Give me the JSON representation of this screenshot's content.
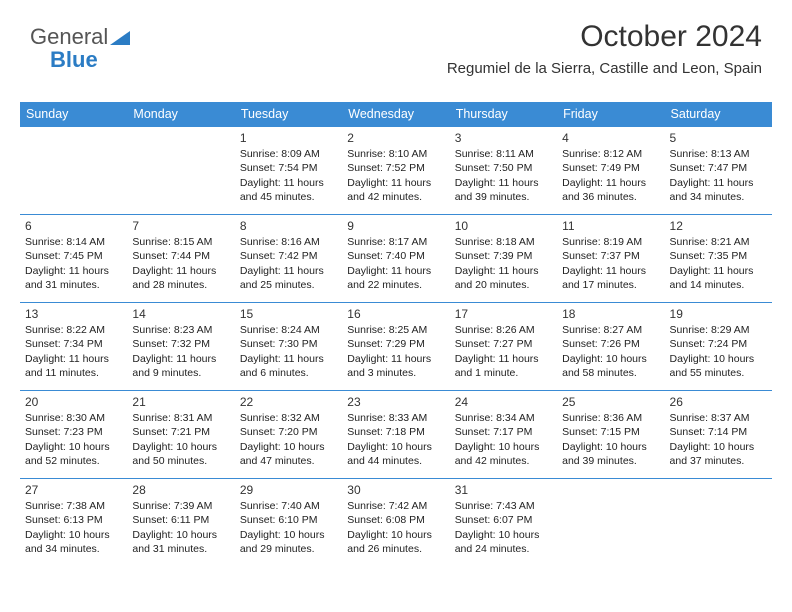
{
  "logo": {
    "line1": "General",
    "line2": "Blue"
  },
  "title": "October 2024",
  "location": "Regumiel de la Sierra, Castille and Leon, Spain",
  "colors": {
    "header_bg": "#3a8bd4",
    "header_fg": "#ffffff",
    "rule": "#3a8bd4",
    "text": "#222222"
  },
  "weekdays": [
    "Sunday",
    "Monday",
    "Tuesday",
    "Wednesday",
    "Thursday",
    "Friday",
    "Saturday"
  ],
  "weeks": [
    [
      null,
      null,
      {
        "n": "1",
        "sr": "Sunrise: 8:09 AM",
        "ss": "Sunset: 7:54 PM",
        "d1": "Daylight: 11 hours",
        "d2": "and 45 minutes."
      },
      {
        "n": "2",
        "sr": "Sunrise: 8:10 AM",
        "ss": "Sunset: 7:52 PM",
        "d1": "Daylight: 11 hours",
        "d2": "and 42 minutes."
      },
      {
        "n": "3",
        "sr": "Sunrise: 8:11 AM",
        "ss": "Sunset: 7:50 PM",
        "d1": "Daylight: 11 hours",
        "d2": "and 39 minutes."
      },
      {
        "n": "4",
        "sr": "Sunrise: 8:12 AM",
        "ss": "Sunset: 7:49 PM",
        "d1": "Daylight: 11 hours",
        "d2": "and 36 minutes."
      },
      {
        "n": "5",
        "sr": "Sunrise: 8:13 AM",
        "ss": "Sunset: 7:47 PM",
        "d1": "Daylight: 11 hours",
        "d2": "and 34 minutes."
      }
    ],
    [
      {
        "n": "6",
        "sr": "Sunrise: 8:14 AM",
        "ss": "Sunset: 7:45 PM",
        "d1": "Daylight: 11 hours",
        "d2": "and 31 minutes."
      },
      {
        "n": "7",
        "sr": "Sunrise: 8:15 AM",
        "ss": "Sunset: 7:44 PM",
        "d1": "Daylight: 11 hours",
        "d2": "and 28 minutes."
      },
      {
        "n": "8",
        "sr": "Sunrise: 8:16 AM",
        "ss": "Sunset: 7:42 PM",
        "d1": "Daylight: 11 hours",
        "d2": "and 25 minutes."
      },
      {
        "n": "9",
        "sr": "Sunrise: 8:17 AM",
        "ss": "Sunset: 7:40 PM",
        "d1": "Daylight: 11 hours",
        "d2": "and 22 minutes."
      },
      {
        "n": "10",
        "sr": "Sunrise: 8:18 AM",
        "ss": "Sunset: 7:39 PM",
        "d1": "Daylight: 11 hours",
        "d2": "and 20 minutes."
      },
      {
        "n": "11",
        "sr": "Sunrise: 8:19 AM",
        "ss": "Sunset: 7:37 PM",
        "d1": "Daylight: 11 hours",
        "d2": "and 17 minutes."
      },
      {
        "n": "12",
        "sr": "Sunrise: 8:21 AM",
        "ss": "Sunset: 7:35 PM",
        "d1": "Daylight: 11 hours",
        "d2": "and 14 minutes."
      }
    ],
    [
      {
        "n": "13",
        "sr": "Sunrise: 8:22 AM",
        "ss": "Sunset: 7:34 PM",
        "d1": "Daylight: 11 hours",
        "d2": "and 11 minutes."
      },
      {
        "n": "14",
        "sr": "Sunrise: 8:23 AM",
        "ss": "Sunset: 7:32 PM",
        "d1": "Daylight: 11 hours",
        "d2": "and 9 minutes."
      },
      {
        "n": "15",
        "sr": "Sunrise: 8:24 AM",
        "ss": "Sunset: 7:30 PM",
        "d1": "Daylight: 11 hours",
        "d2": "and 6 minutes."
      },
      {
        "n": "16",
        "sr": "Sunrise: 8:25 AM",
        "ss": "Sunset: 7:29 PM",
        "d1": "Daylight: 11 hours",
        "d2": "and 3 minutes."
      },
      {
        "n": "17",
        "sr": "Sunrise: 8:26 AM",
        "ss": "Sunset: 7:27 PM",
        "d1": "Daylight: 11 hours",
        "d2": "and 1 minute."
      },
      {
        "n": "18",
        "sr": "Sunrise: 8:27 AM",
        "ss": "Sunset: 7:26 PM",
        "d1": "Daylight: 10 hours",
        "d2": "and 58 minutes."
      },
      {
        "n": "19",
        "sr": "Sunrise: 8:29 AM",
        "ss": "Sunset: 7:24 PM",
        "d1": "Daylight: 10 hours",
        "d2": "and 55 minutes."
      }
    ],
    [
      {
        "n": "20",
        "sr": "Sunrise: 8:30 AM",
        "ss": "Sunset: 7:23 PM",
        "d1": "Daylight: 10 hours",
        "d2": "and 52 minutes."
      },
      {
        "n": "21",
        "sr": "Sunrise: 8:31 AM",
        "ss": "Sunset: 7:21 PM",
        "d1": "Daylight: 10 hours",
        "d2": "and 50 minutes."
      },
      {
        "n": "22",
        "sr": "Sunrise: 8:32 AM",
        "ss": "Sunset: 7:20 PM",
        "d1": "Daylight: 10 hours",
        "d2": "and 47 minutes."
      },
      {
        "n": "23",
        "sr": "Sunrise: 8:33 AM",
        "ss": "Sunset: 7:18 PM",
        "d1": "Daylight: 10 hours",
        "d2": "and 44 minutes."
      },
      {
        "n": "24",
        "sr": "Sunrise: 8:34 AM",
        "ss": "Sunset: 7:17 PM",
        "d1": "Daylight: 10 hours",
        "d2": "and 42 minutes."
      },
      {
        "n": "25",
        "sr": "Sunrise: 8:36 AM",
        "ss": "Sunset: 7:15 PM",
        "d1": "Daylight: 10 hours",
        "d2": "and 39 minutes."
      },
      {
        "n": "26",
        "sr": "Sunrise: 8:37 AM",
        "ss": "Sunset: 7:14 PM",
        "d1": "Daylight: 10 hours",
        "d2": "and 37 minutes."
      }
    ],
    [
      {
        "n": "27",
        "sr": "Sunrise: 7:38 AM",
        "ss": "Sunset: 6:13 PM",
        "d1": "Daylight: 10 hours",
        "d2": "and 34 minutes."
      },
      {
        "n": "28",
        "sr": "Sunrise: 7:39 AM",
        "ss": "Sunset: 6:11 PM",
        "d1": "Daylight: 10 hours",
        "d2": "and 31 minutes."
      },
      {
        "n": "29",
        "sr": "Sunrise: 7:40 AM",
        "ss": "Sunset: 6:10 PM",
        "d1": "Daylight: 10 hours",
        "d2": "and 29 minutes."
      },
      {
        "n": "30",
        "sr": "Sunrise: 7:42 AM",
        "ss": "Sunset: 6:08 PM",
        "d1": "Daylight: 10 hours",
        "d2": "and 26 minutes."
      },
      {
        "n": "31",
        "sr": "Sunrise: 7:43 AM",
        "ss": "Sunset: 6:07 PM",
        "d1": "Daylight: 10 hours",
        "d2": "and 24 minutes."
      },
      null,
      null
    ]
  ]
}
